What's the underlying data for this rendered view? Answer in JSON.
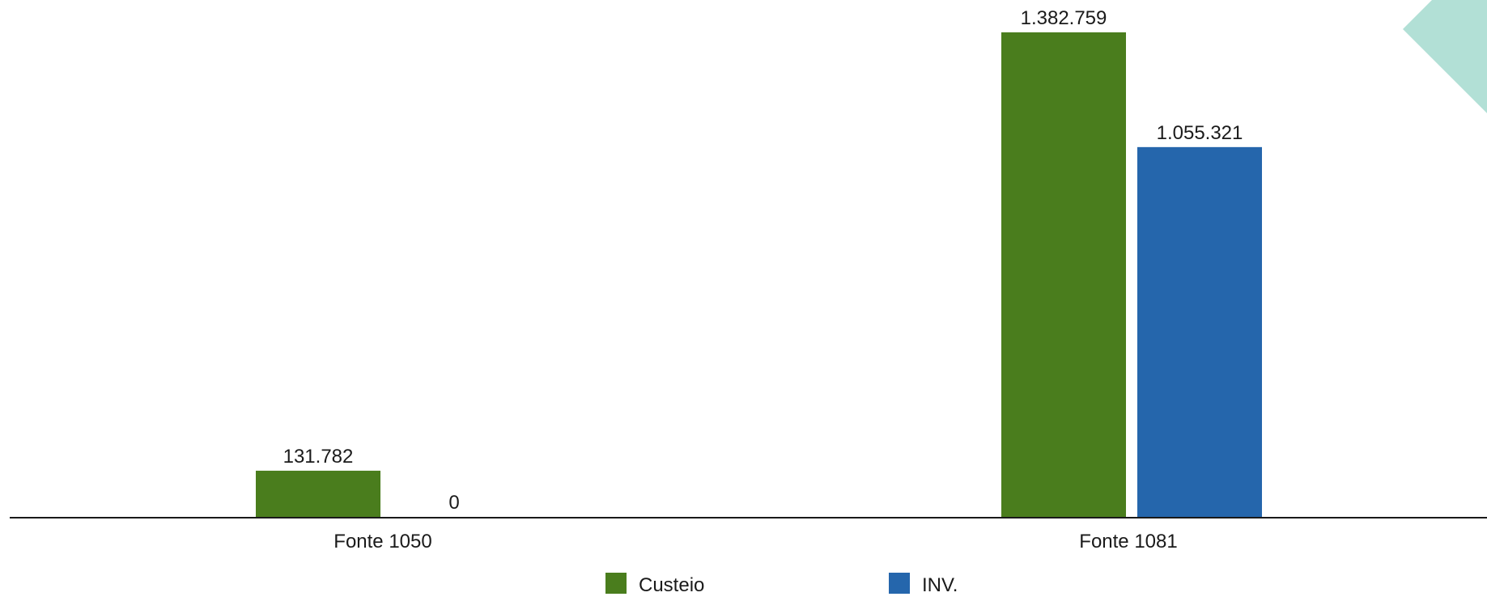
{
  "chart_data": {
    "type": "bar",
    "title": "",
    "xlabel": "",
    "ylabel": "",
    "categories": [
      "Fonte 1050",
      "Fonte 1081"
    ],
    "series": [
      {
        "name": "Custeio",
        "values": [
          131782,
          1382759
        ],
        "labels": [
          "131.782",
          "1.382.759"
        ]
      },
      {
        "name": "INV.",
        "values": [
          0,
          1055321
        ],
        "labels": [
          "0",
          "1.055.321"
        ]
      }
    ],
    "ylim": [
      0,
      1382759
    ],
    "grid": false,
    "legend": "bottom-center"
  },
  "colors": {
    "series": [
      "#4a7d1d",
      "#2566ac"
    ],
    "decoration": "#b2e0d6",
    "axis": "#1a1a1a"
  }
}
